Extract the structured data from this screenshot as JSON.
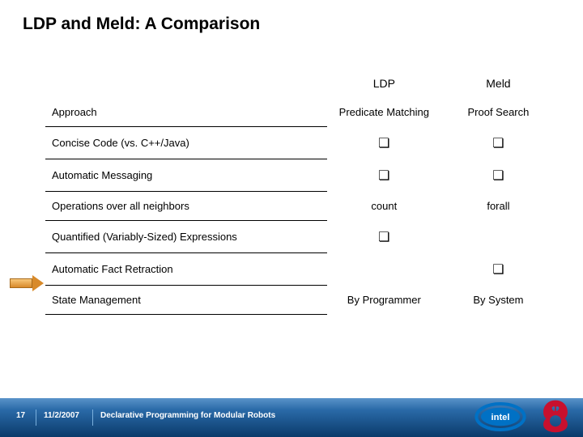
{
  "title": "LDP and Meld: A Comparison",
  "table": {
    "col1_header": "LDP",
    "col2_header": "Meld",
    "rows": [
      {
        "feature": "Approach",
        "ldp": "Predicate Matching",
        "meld": "Proof Search",
        "type": "text",
        "no_rule": true
      },
      {
        "feature": "Concise Code (vs. C++/Java)",
        "ldp": "check",
        "meld": "check",
        "type": "check"
      },
      {
        "feature": "Automatic Messaging",
        "ldp": "check",
        "meld": "check",
        "type": "check"
      },
      {
        "feature": "Operations over all neighbors",
        "ldp": "count",
        "meld": "forall",
        "type": "text"
      },
      {
        "feature": "Quantified (Variably-Sized) Expressions",
        "ldp": "check",
        "meld": "",
        "type": "check"
      },
      {
        "feature": "Automatic Fact Retraction",
        "ldp": "",
        "meld": "check",
        "type": "check"
      },
      {
        "feature": "State Management",
        "ldp": "By Programmer",
        "meld": "By System",
        "type": "text"
      }
    ]
  },
  "footer": {
    "page": "17",
    "date": "11/2/2007",
    "talk": "Declarative Programming for Modular Robots"
  },
  "check_glyph": "❏",
  "colors": {
    "title": "#000000",
    "rule": "#000000",
    "footer_gradient_top": "#5a93c9",
    "footer_gradient_bottom": "#0a3a6a",
    "intel_blue": "#0071c5",
    "griffin_red": "#c8102e"
  }
}
